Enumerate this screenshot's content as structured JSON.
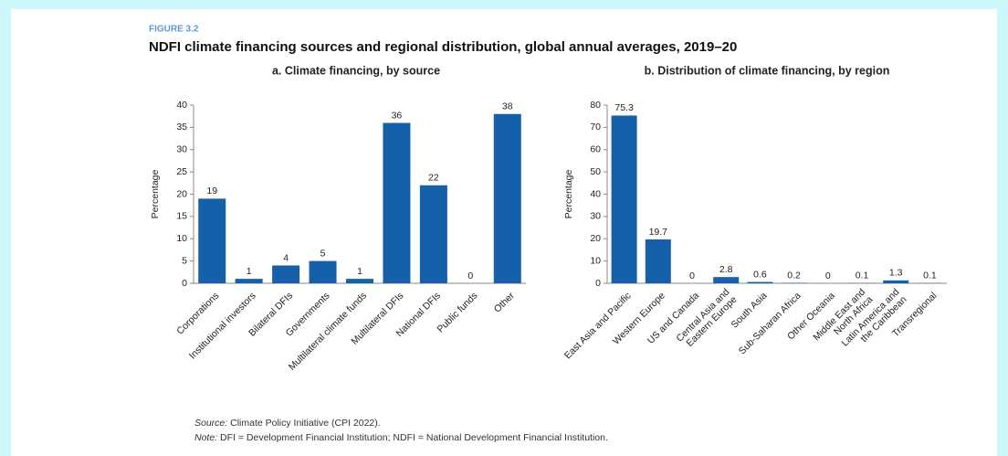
{
  "figure_label": "FIGURE 3.2",
  "title": "NDFI climate financing sources and regional distribution, global annual averages, 2019–20",
  "chart_data": [
    {
      "type": "bar",
      "title": "a. Climate financing, by source",
      "ylabel": "Percentage",
      "categories": [
        "Corporations",
        "Institutional investors",
        "Bilateral DFIs",
        "Governments",
        "Multilateral climate funds",
        "Multilateral DFIs",
        "National DFIs",
        "Public funds",
        "Other"
      ],
      "values": [
        19,
        1,
        4,
        5,
        1,
        36,
        22,
        0,
        38
      ],
      "color": "#1560a8",
      "ylim": [
        0,
        40
      ],
      "yticks": [
        0,
        5,
        10,
        15,
        20,
        25,
        30,
        35,
        40
      ]
    },
    {
      "type": "bar",
      "title": "b. Distribution of climate financing, by region",
      "ylabel": "Percentage",
      "categories": [
        "East Asia and Pacific",
        "Western Europe",
        "US and Canada",
        "Central Asia and\nEastern Europe",
        "South Asia",
        "Sub-Saharan Africa",
        "Other Oceania",
        "Middle East and\nNorth Africa",
        "Latin America and\nthe Caribbean",
        "Transregional"
      ],
      "values": [
        75.3,
        19.7,
        0,
        2.8,
        0.6,
        0.2,
        0,
        0.1,
        1.3,
        0.1
      ],
      "color": "#1560a8",
      "ylim": [
        0,
        80
      ],
      "yticks": [
        0,
        10,
        20,
        30,
        40,
        50,
        60,
        70,
        80
      ]
    }
  ],
  "source_label": "Source:",
  "source": "Climate Policy Initiative (CPI 2022).",
  "note_label": "Note:",
  "note": "DFI = Development Financial Institution; NDFI = National Development Financial Institution."
}
